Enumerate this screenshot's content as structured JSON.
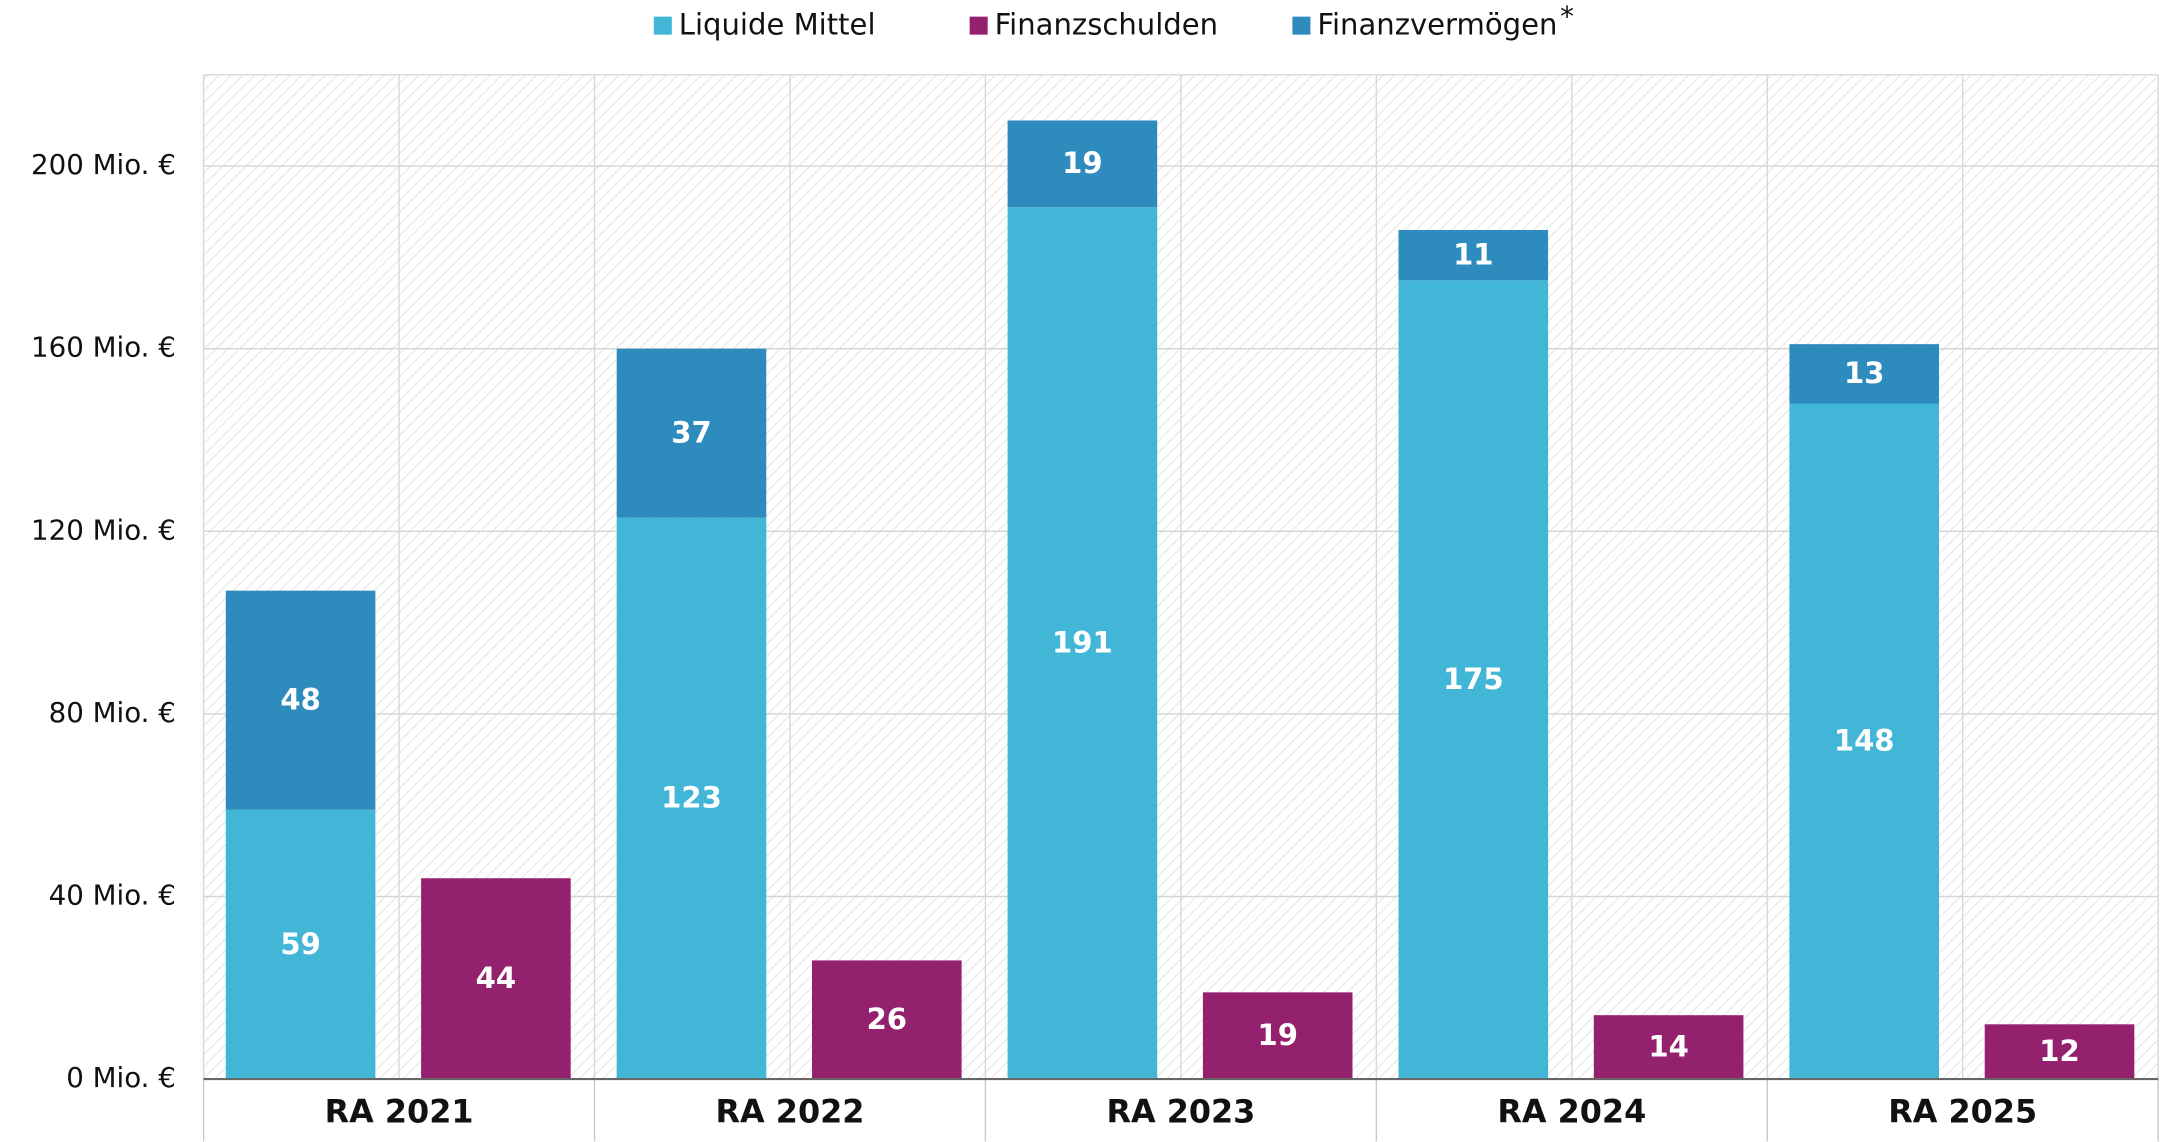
{
  "chart_data": {
    "type": "bar",
    "categories": [
      "RA 2021",
      "RA 2022",
      "RA 2023",
      "RA 2024",
      "RA 2025"
    ],
    "series": [
      {
        "name": "Liquide Mittel",
        "color": "#41b6d6",
        "stack": 0,
        "values": [
          59,
          123,
          191,
          175,
          148
        ]
      },
      {
        "name": "Finanzschulden",
        "color": "#93216e",
        "stack": 1,
        "values": [
          44,
          26,
          19,
          14,
          12
        ]
      },
      {
        "name": "Finanzvermögen",
        "color": "#2e8bbd",
        "stack": 0,
        "values": [
          48,
          37,
          19,
          11,
          13
        ]
      }
    ],
    "legend_note": "*",
    "ylim": [
      0,
      220
    ],
    "yticks": [
      {
        "value": 0,
        "label": "0 Mio. €"
      },
      {
        "value": 40,
        "label": "40 Mio. €"
      },
      {
        "value": 80,
        "label": "80 Mio. €"
      },
      {
        "value": 120,
        "label": "120 Mio. €"
      },
      {
        "value": 160,
        "label": "160 Mio. €"
      },
      {
        "value": 200,
        "label": "200 Mio. €"
      }
    ],
    "grid": true,
    "legend": "top"
  }
}
